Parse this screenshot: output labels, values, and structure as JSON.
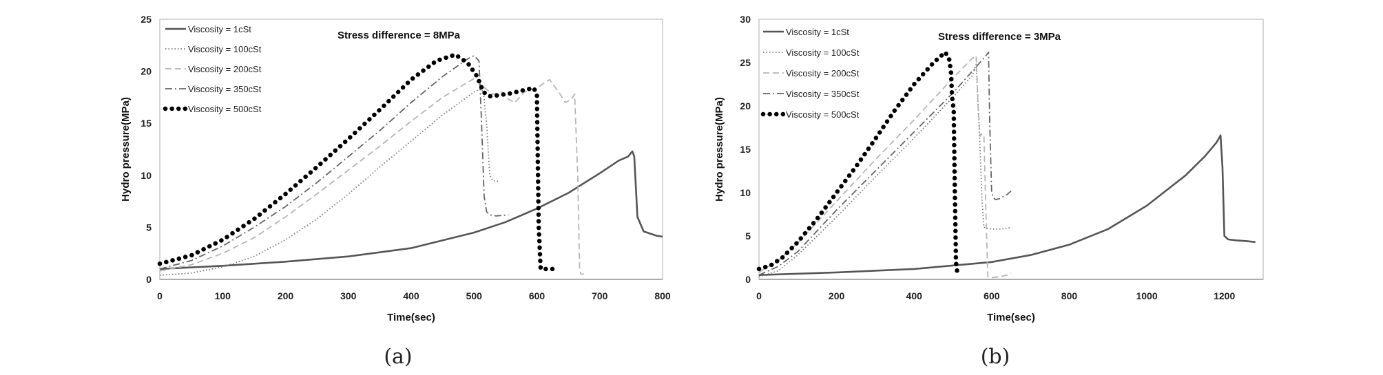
{
  "chart_data": [
    {
      "type": "line",
      "panel_label": "(a)",
      "annotation": "Stress difference = 8MPa",
      "xlabel": "Time(sec)",
      "ylabel": "Hydro pressure(MPa)",
      "xlim": [
        0,
        800
      ],
      "ylim": [
        0,
        25
      ],
      "xticks": [
        "0",
        "100",
        "200",
        "300",
        "400",
        "500",
        "600",
        "700",
        "800"
      ],
      "yticks": [
        "0",
        "5",
        "10",
        "15",
        "20",
        "25"
      ],
      "grid": false,
      "legend_position": "top-left",
      "series": [
        {
          "name": "Viscosity = 1cSt",
          "style": "solid",
          "color": "#555555",
          "x": [
            0,
            100,
            200,
            300,
            400,
            500,
            550,
            600,
            650,
            700,
            730,
            745,
            752,
            755,
            760,
            770,
            790,
            800
          ],
          "y": [
            1.0,
            1.3,
            1.7,
            2.2,
            3.0,
            4.5,
            5.5,
            6.8,
            8.3,
            10.2,
            11.4,
            11.8,
            12.3,
            11.8,
            6.0,
            4.6,
            4.2,
            4.1
          ]
        },
        {
          "name": "Viscosity = 100cSt",
          "style": "dotted",
          "color": "#777777",
          "x": [
            0,
            50,
            100,
            150,
            200,
            250,
            300,
            350,
            400,
            450,
            500,
            510,
            515,
            520,
            525,
            530,
            540
          ],
          "y": [
            0.4,
            0.6,
            1.2,
            2.2,
            3.8,
            5.8,
            8.2,
            10.8,
            13.3,
            15.8,
            18.0,
            18.3,
            18.0,
            15.0,
            10.0,
            9.5,
            9.4
          ]
        },
        {
          "name": "Viscosity = 200cSt",
          "style": "dashed",
          "color": "#b5b5b5",
          "x": [
            0,
            50,
            100,
            150,
            200,
            250,
            300,
            350,
            400,
            450,
            500,
            515,
            530,
            545,
            555,
            565,
            580,
            600,
            620,
            635,
            645,
            655,
            660,
            665,
            668,
            670,
            675
          ],
          "y": [
            0.8,
            1.4,
            2.5,
            4.0,
            6.0,
            8.2,
            10.5,
            12.8,
            15.2,
            17.5,
            19.3,
            18.5,
            17.8,
            18.0,
            17.3,
            17.0,
            18.0,
            18.4,
            19.2,
            18.0,
            17.0,
            17.3,
            17.8,
            10.0,
            1.0,
            0.5,
            0.5
          ]
        },
        {
          "name": "Viscosity = 350cSt",
          "style": "dashdot",
          "color": "#666666",
          "x": [
            0,
            50,
            100,
            150,
            200,
            250,
            300,
            350,
            400,
            450,
            490,
            500,
            508,
            512,
            516,
            520,
            525,
            535,
            555
          ],
          "y": [
            1.0,
            1.8,
            3.2,
            5.0,
            7.0,
            9.3,
            11.8,
            14.3,
            17.0,
            19.5,
            21.2,
            21.5,
            21.0,
            15.0,
            8.0,
            6.5,
            6.2,
            6.1,
            6.2
          ]
        },
        {
          "name": "Viscosity = 500cSt",
          "style": "bigdots",
          "color": "#000000",
          "x": [
            0,
            50,
            100,
            150,
            200,
            250,
            300,
            350,
            400,
            440,
            470,
            490,
            505,
            515,
            525,
            540,
            560,
            580,
            595,
            600,
            603,
            606,
            620,
            635
          ],
          "y": [
            1.5,
            2.3,
            3.8,
            5.8,
            8.2,
            10.8,
            13.5,
            16.3,
            19.2,
            21.0,
            21.6,
            20.8,
            19.5,
            18.0,
            17.6,
            17.7,
            17.9,
            18.2,
            18.4,
            17.8,
            5.0,
            1.0,
            1.0,
            1.0
          ]
        }
      ]
    },
    {
      "type": "line",
      "panel_label": "(b)",
      "annotation": "Stress difference = 3MPa",
      "xlabel": "Time(sec)",
      "ylabel": "Hydro pressure(MPa)",
      "xlim": [
        0,
        1300
      ],
      "ylim": [
        0,
        30
      ],
      "xticks": [
        "0",
        "200",
        "400",
        "600",
        "800",
        "1000",
        "1200"
      ],
      "yticks": [
        "0",
        "5",
        "10",
        "15",
        "20",
        "25",
        "30"
      ],
      "grid": false,
      "legend_position": "top-left",
      "series": [
        {
          "name": "Viscosity = 1cSt",
          "style": "solid",
          "color": "#555555",
          "x": [
            0,
            200,
            400,
            600,
            700,
            800,
            900,
            1000,
            1100,
            1150,
            1180,
            1190,
            1195,
            1200,
            1210,
            1230,
            1260,
            1280
          ],
          "y": [
            0.5,
            0.8,
            1.2,
            2.0,
            2.8,
            4.0,
            5.8,
            8.5,
            12.0,
            14.2,
            15.8,
            16.6,
            13.0,
            5.0,
            4.6,
            4.5,
            4.4,
            4.3
          ]
        },
        {
          "name": "Viscosity = 100cSt",
          "style": "dotted",
          "color": "#777777",
          "x": [
            0,
            50,
            100,
            200,
            300,
            400,
            500,
            550,
            560,
            565,
            570,
            575,
            580,
            590,
            600,
            620,
            640,
            650
          ],
          "y": [
            0.3,
            1.0,
            2.8,
            7.2,
            11.8,
            16.3,
            21.0,
            23.5,
            24.8,
            20.0,
            15.0,
            9.0,
            6.0,
            5.9,
            5.8,
            5.8,
            5.9,
            6.0
          ]
        },
        {
          "name": "Viscosity = 200cSt",
          "style": "dashed",
          "color": "#b5b5b5",
          "x": [
            0,
            50,
            100,
            200,
            300,
            400,
            500,
            550,
            560,
            565,
            570,
            575,
            580,
            585,
            590,
            600,
            620,
            640,
            650
          ],
          "y": [
            0.8,
            2.2,
            4.2,
            9.0,
            13.8,
            18.4,
            23.2,
            25.5,
            25.8,
            20.0,
            16.5,
            16.8,
            16.5,
            8.0,
            0.3,
            0.2,
            0.3,
            0.5,
            0.7
          ]
        },
        {
          "name": "Viscosity = 350cSt",
          "style": "dashdot",
          "color": "#666666",
          "x": [
            0,
            50,
            100,
            200,
            300,
            400,
            500,
            560,
            585,
            592,
            595,
            600,
            605,
            610,
            620,
            640,
            650
          ],
          "y": [
            0.5,
            1.5,
            3.2,
            8.0,
            12.5,
            17.0,
            21.5,
            24.5,
            25.8,
            26.2,
            18.0,
            10.0,
            9.4,
            9.2,
            9.3,
            9.8,
            10.2
          ]
        },
        {
          "name": "Viscosity = 500cSt",
          "style": "bigdots",
          "color": "#000000",
          "x": [
            0,
            30,
            60,
            100,
            150,
            200,
            250,
            300,
            350,
            400,
            450,
            480,
            490,
            495,
            498,
            502,
            505,
            508,
            512
          ],
          "y": [
            1.2,
            1.6,
            2.5,
            4.3,
            7.0,
            10.0,
            13.0,
            16.2,
            19.5,
            22.5,
            25.0,
            26.2,
            25.5,
            24.0,
            21.0,
            19.5,
            10.0,
            2.0,
            0.5
          ]
        }
      ]
    }
  ]
}
